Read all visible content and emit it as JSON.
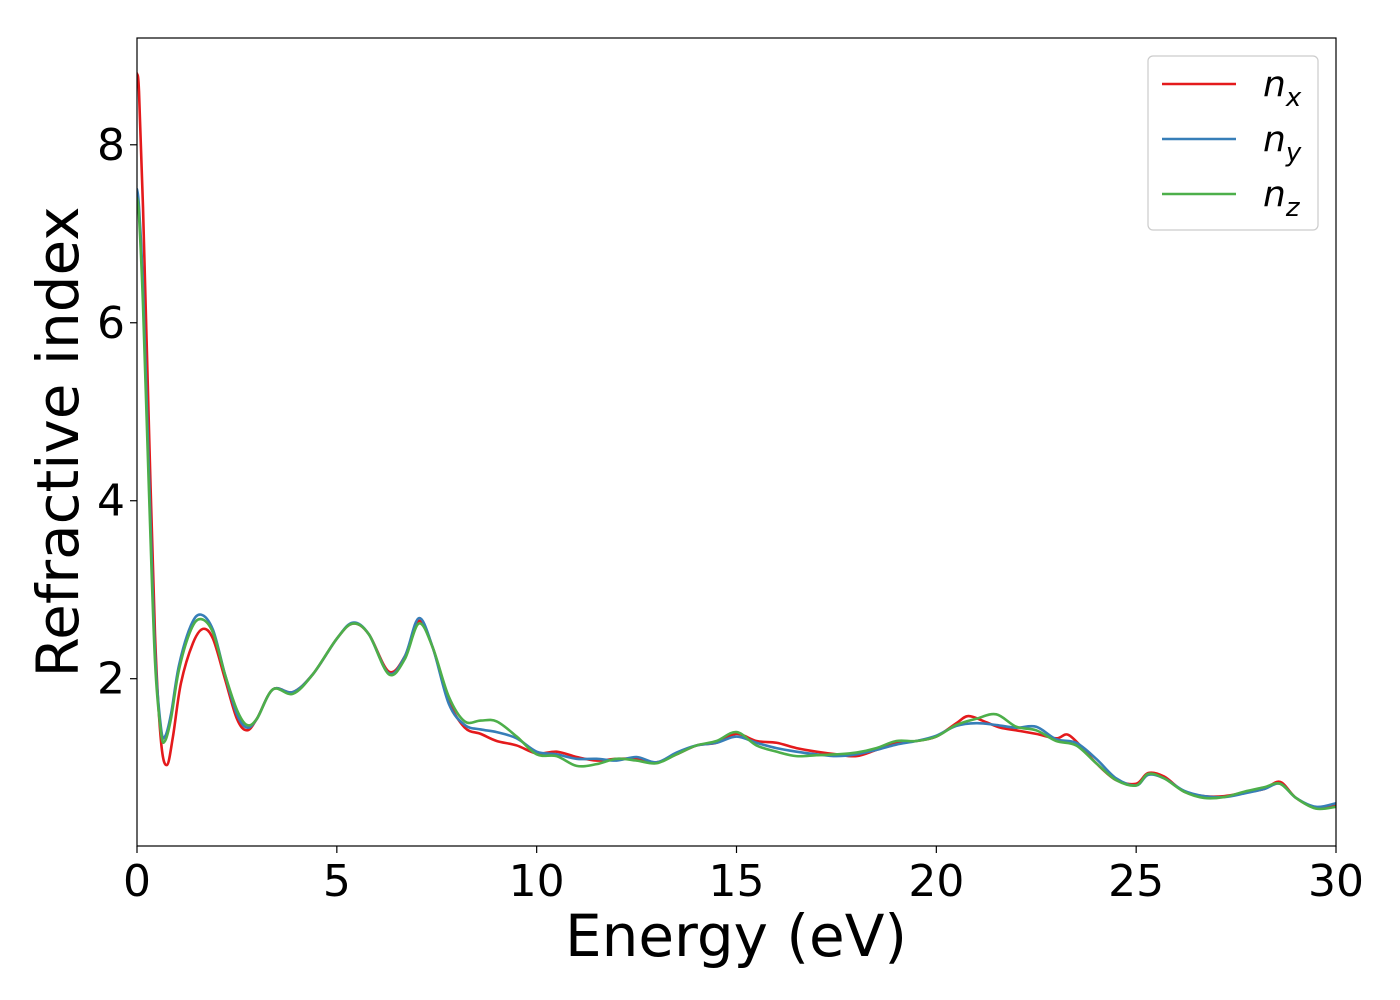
{
  "chart_data": {
    "type": "line",
    "xlabel": "Energy (eV)",
    "ylabel": "Refractive index",
    "xlim": [
      0,
      30
    ],
    "ylim": [
      0.12,
      9.2
    ],
    "xticks": [
      0,
      5,
      10,
      15,
      20,
      25,
      30
    ],
    "xtick_labels": [
      "0",
      "5",
      "10",
      "15",
      "20",
      "25",
      "30"
    ],
    "yticks": [
      2,
      4,
      6,
      8
    ],
    "ytick_labels": [
      "2",
      "4",
      "6",
      "8"
    ],
    "grid": false,
    "legend_position": "top-right",
    "series": [
      {
        "name": "n_x",
        "label_main": "n",
        "label_sub": "x",
        "color": "#e41a1c",
        "x": [
          0,
          0.05,
          0.15,
          0.3,
          0.45,
          0.6,
          0.75,
          0.9,
          1.1,
          1.4,
          1.65,
          1.9,
          2.2,
          2.5,
          2.75,
          3.0,
          3.4,
          3.9,
          4.4,
          5.0,
          5.4,
          5.8,
          6.3,
          6.7,
          7.05,
          7.4,
          7.8,
          8.2,
          8.6,
          9.0,
          9.5,
          10.0,
          10.5,
          11.0,
          11.5,
          12.0,
          12.5,
          13.0,
          13.5,
          14.0,
          14.5,
          15.0,
          15.5,
          16.0,
          16.5,
          17.0,
          17.5,
          18.0,
          18.5,
          19.0,
          19.5,
          20.0,
          20.5,
          20.8,
          21.2,
          21.6,
          22.0,
          22.5,
          23.0,
          23.3,
          23.7,
          24.0,
          24.5,
          25.0,
          25.3,
          25.7,
          26.2,
          26.7,
          27.2,
          27.7,
          28.2,
          28.6,
          29.0,
          29.5,
          30.0
        ],
        "y": [
          8.8,
          8.6,
          7.3,
          4.8,
          2.5,
          1.3,
          1.03,
          1.35,
          1.95,
          2.4,
          2.56,
          2.45,
          2.0,
          1.55,
          1.42,
          1.55,
          1.88,
          1.85,
          2.05,
          2.45,
          2.62,
          2.5,
          2.08,
          2.25,
          2.65,
          2.35,
          1.75,
          1.45,
          1.38,
          1.3,
          1.25,
          1.16,
          1.18,
          1.12,
          1.08,
          1.1,
          1.1,
          1.06,
          1.15,
          1.25,
          1.28,
          1.38,
          1.3,
          1.28,
          1.22,
          1.18,
          1.15,
          1.13,
          1.2,
          1.28,
          1.3,
          1.35,
          1.5,
          1.58,
          1.52,
          1.45,
          1.42,
          1.38,
          1.33,
          1.37,
          1.2,
          1.05,
          0.86,
          0.82,
          0.94,
          0.9,
          0.73,
          0.68,
          0.68,
          0.72,
          0.76,
          0.84,
          0.66,
          0.55,
          0.58
        ]
      },
      {
        "name": "n_y",
        "label_main": "n",
        "label_sub": "y",
        "color": "#377eb8",
        "x": [
          0,
          0.05,
          0.15,
          0.3,
          0.45,
          0.6,
          0.7,
          0.85,
          1.05,
          1.35,
          1.6,
          1.9,
          2.2,
          2.5,
          2.75,
          3.0,
          3.4,
          3.9,
          4.4,
          5.0,
          5.4,
          5.8,
          6.3,
          6.7,
          7.05,
          7.4,
          7.8,
          8.2,
          8.6,
          9.0,
          9.5,
          10.0,
          10.5,
          11.0,
          11.5,
          12.0,
          12.5,
          13.0,
          13.5,
          14.0,
          14.5,
          15.0,
          15.5,
          16.0,
          16.5,
          17.0,
          17.5,
          18.0,
          18.5,
          19.0,
          19.5,
          20.0,
          20.5,
          21.0,
          21.5,
          22.0,
          22.5,
          23.0,
          23.5,
          24.0,
          24.5,
          25.0,
          25.3,
          25.7,
          26.2,
          26.7,
          27.2,
          27.7,
          28.2,
          28.6,
          29.0,
          29.5,
          30.0
        ],
        "y": [
          7.5,
          7.3,
          6.4,
          4.3,
          2.3,
          1.45,
          1.35,
          1.6,
          2.15,
          2.6,
          2.72,
          2.55,
          2.05,
          1.6,
          1.45,
          1.55,
          1.88,
          1.85,
          2.05,
          2.45,
          2.63,
          2.5,
          2.06,
          2.25,
          2.68,
          2.35,
          1.72,
          1.48,
          1.43,
          1.4,
          1.33,
          1.18,
          1.15,
          1.1,
          1.1,
          1.08,
          1.12,
          1.06,
          1.17,
          1.25,
          1.28,
          1.35,
          1.28,
          1.22,
          1.18,
          1.15,
          1.13,
          1.15,
          1.2,
          1.26,
          1.3,
          1.36,
          1.47,
          1.5,
          1.48,
          1.45,
          1.46,
          1.32,
          1.28,
          1.1,
          0.88,
          0.8,
          0.92,
          0.88,
          0.74,
          0.68,
          0.67,
          0.71,
          0.76,
          0.82,
          0.66,
          0.56,
          0.6
        ]
      },
      {
        "name": "n_z",
        "label_main": "n",
        "label_sub": "z",
        "color": "#4daf4a",
        "x": [
          0,
          0.05,
          0.15,
          0.3,
          0.45,
          0.6,
          0.7,
          0.85,
          1.05,
          1.35,
          1.6,
          1.9,
          2.2,
          2.5,
          2.75,
          3.0,
          3.4,
          3.9,
          4.4,
          5.0,
          5.4,
          5.8,
          6.3,
          6.7,
          7.05,
          7.4,
          7.8,
          8.2,
          8.6,
          9.0,
          9.5,
          10.0,
          10.5,
          11.0,
          11.5,
          12.0,
          12.5,
          13.0,
          13.5,
          14.0,
          14.5,
          15.0,
          15.5,
          16.0,
          16.5,
          17.0,
          17.5,
          18.0,
          18.5,
          19.0,
          19.5,
          20.0,
          20.5,
          21.0,
          21.5,
          22.0,
          22.5,
          23.0,
          23.5,
          24.0,
          24.5,
          25.0,
          25.3,
          25.7,
          26.2,
          26.7,
          27.2,
          27.7,
          28.2,
          28.6,
          29.0,
          29.5,
          30.0
        ],
        "y": [
          7.4,
          7.2,
          6.2,
          4.1,
          2.2,
          1.4,
          1.3,
          1.55,
          2.1,
          2.55,
          2.67,
          2.52,
          2.05,
          1.65,
          1.48,
          1.55,
          1.88,
          1.83,
          2.05,
          2.45,
          2.62,
          2.5,
          2.05,
          2.22,
          2.62,
          2.35,
          1.8,
          1.52,
          1.53,
          1.52,
          1.35,
          1.15,
          1.13,
          1.02,
          1.04,
          1.1,
          1.08,
          1.05,
          1.15,
          1.25,
          1.3,
          1.4,
          1.25,
          1.18,
          1.13,
          1.14,
          1.15,
          1.17,
          1.22,
          1.3,
          1.3,
          1.35,
          1.48,
          1.55,
          1.6,
          1.46,
          1.42,
          1.3,
          1.25,
          1.05,
          0.86,
          0.8,
          0.93,
          0.88,
          0.73,
          0.66,
          0.67,
          0.73,
          0.78,
          0.82,
          0.66,
          0.54,
          0.56
        ]
      }
    ]
  }
}
